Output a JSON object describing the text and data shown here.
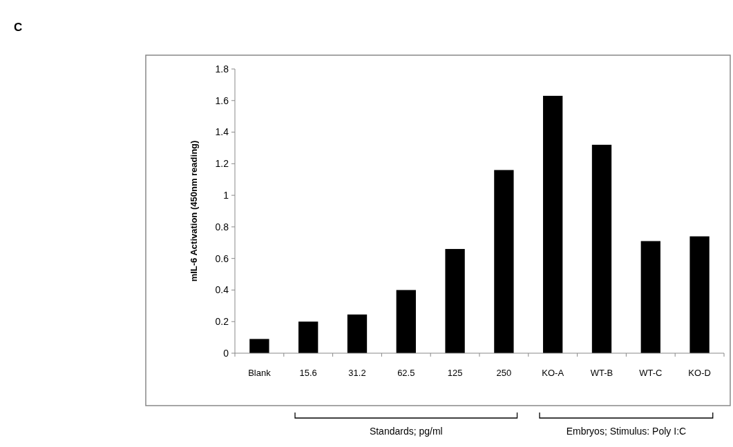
{
  "chart_data": {
    "type": "bar",
    "ylabel": "mIL-6 Activation (450nm reading)",
    "categories": [
      "Blank",
      "15.6",
      "31.2",
      "62.5",
      "125",
      "250",
      "KO-A",
      "WT-B",
      "WT-C",
      "KO-D"
    ],
    "values": [
      0.09,
      0.2,
      0.245,
      0.4,
      0.66,
      1.16,
      1.63,
      1.32,
      0.71,
      0.74
    ],
    "color": "#000000",
    "ylim": [
      0,
      1.8
    ],
    "yticks": [
      0,
      0.2,
      0.4,
      0.6,
      0.8,
      1,
      1.2,
      1.4,
      1.6,
      1.8
    ],
    "grid": false,
    "annotations": [
      "C",
      "Standards; pg/ml",
      "Embryos; Stimulus: Poly I:C"
    ]
  }
}
